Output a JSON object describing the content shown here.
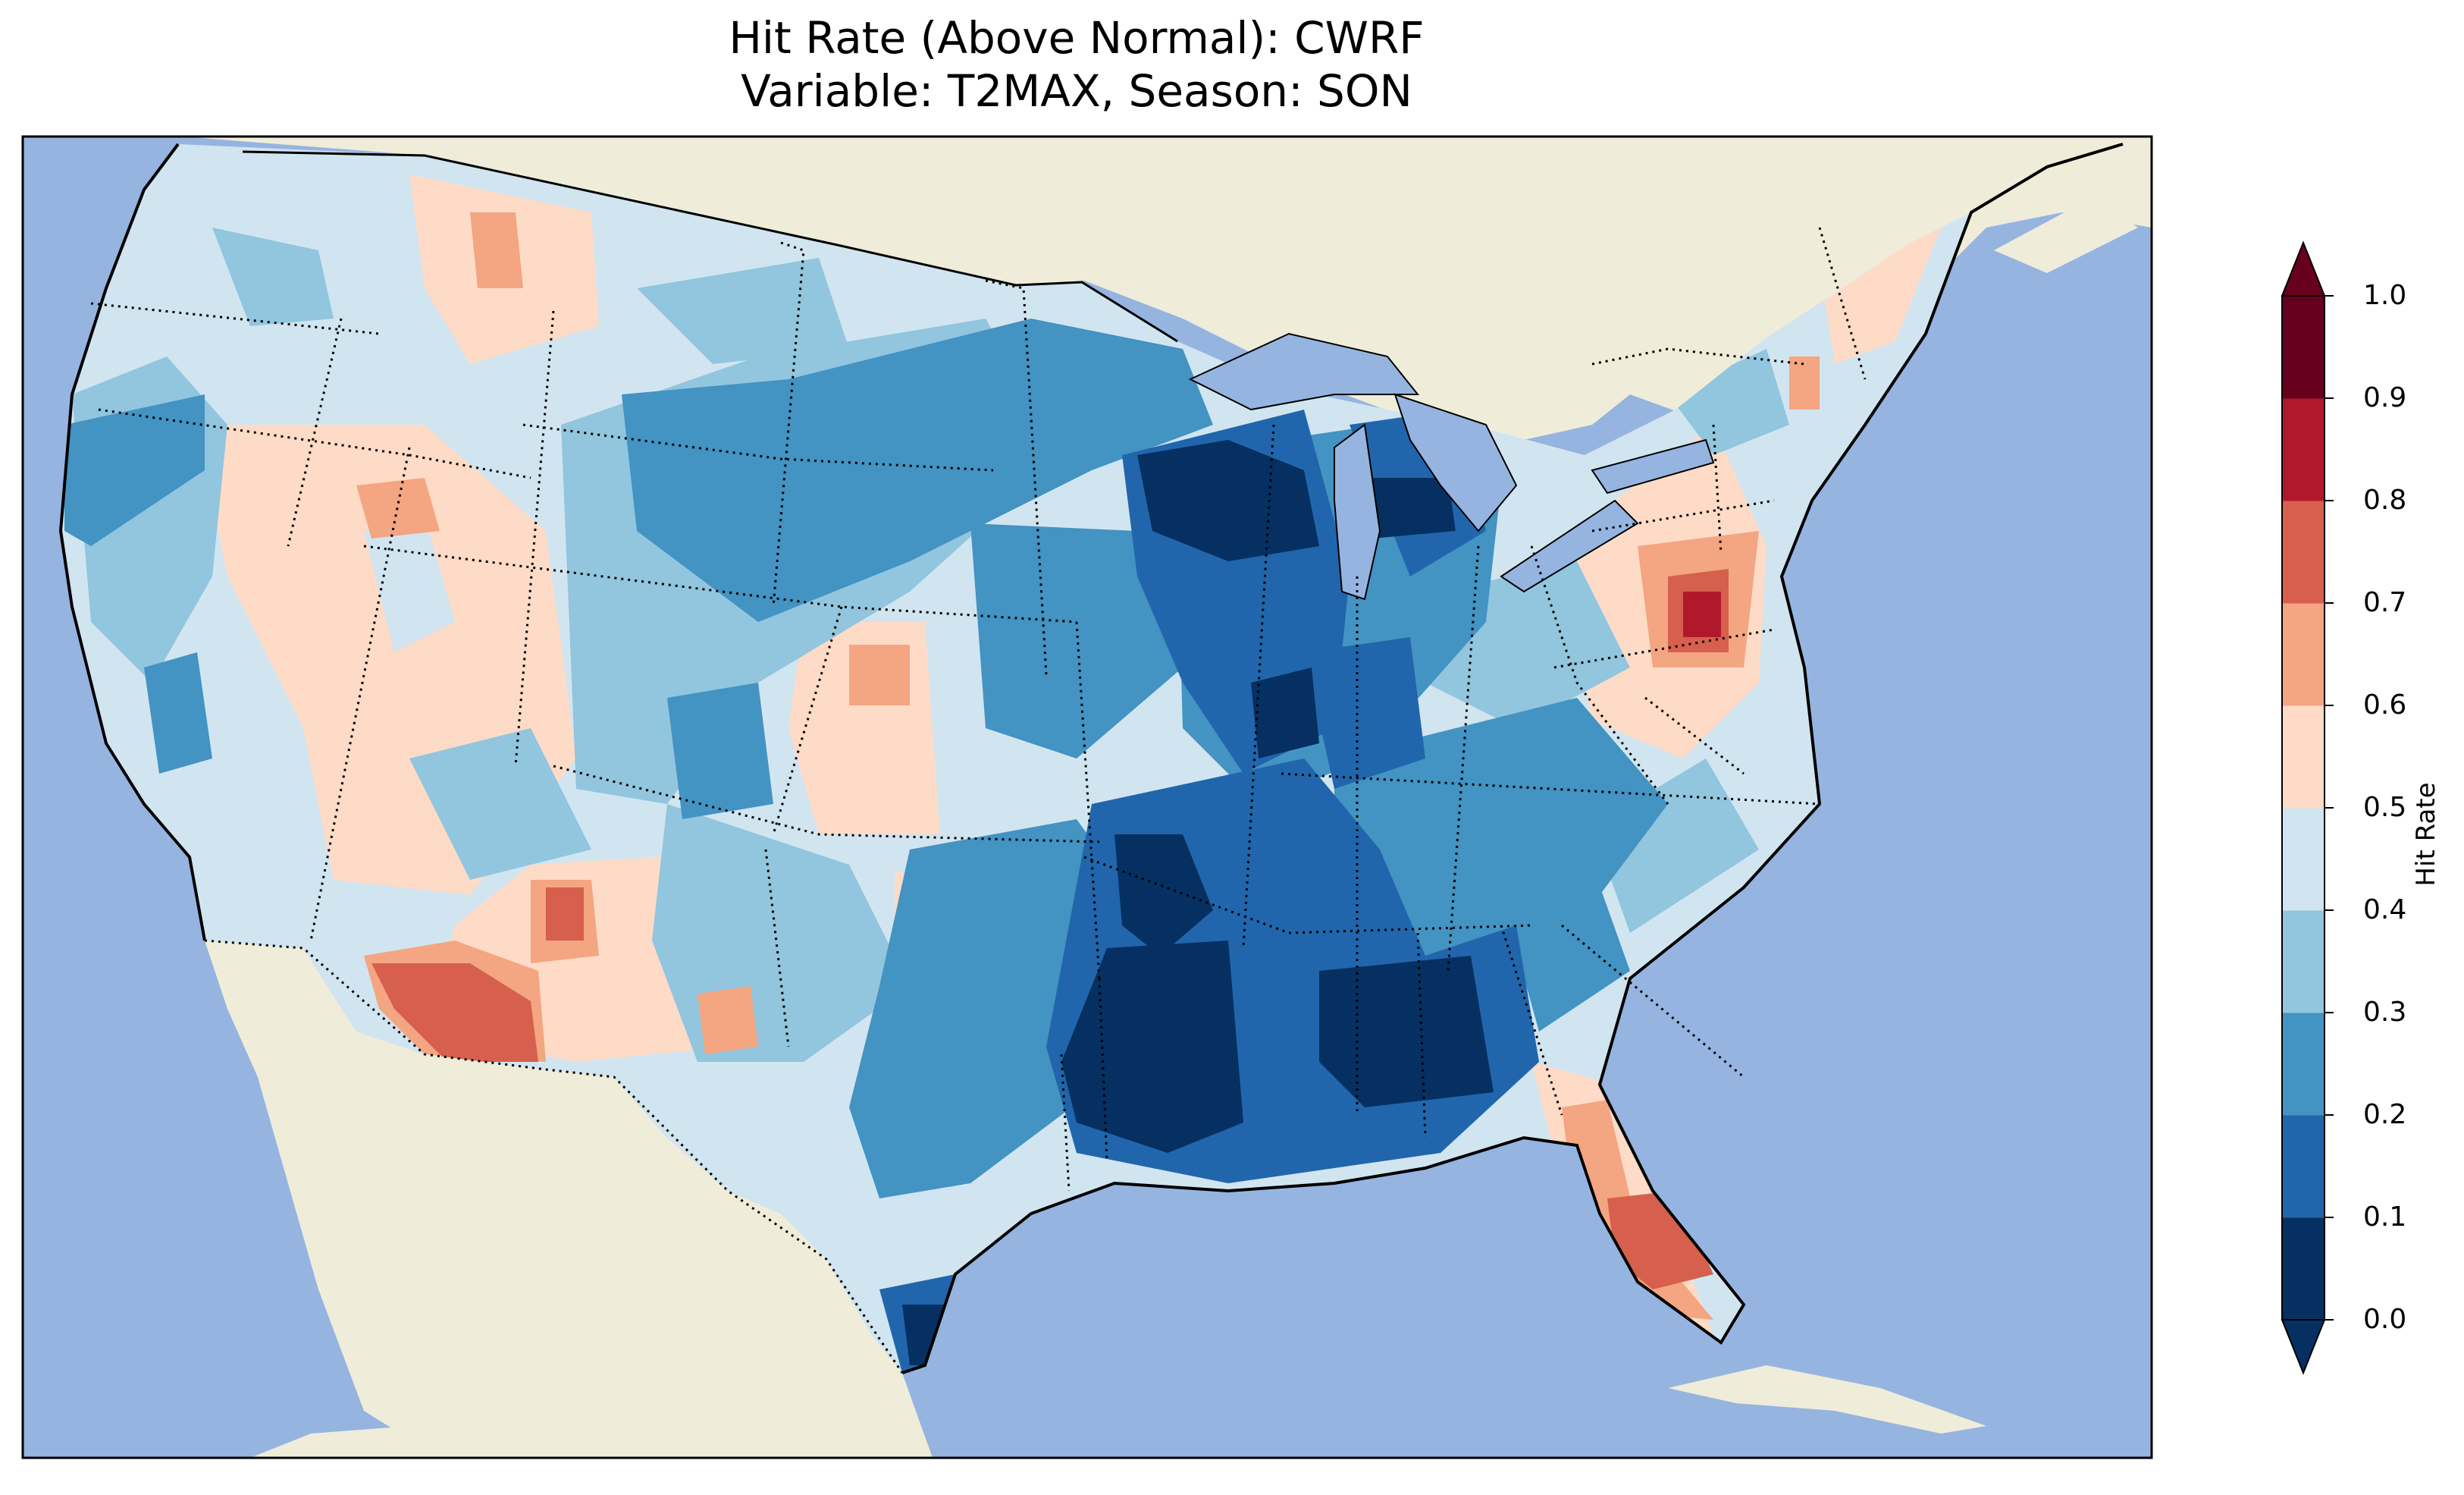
{
  "title": {
    "line1": "Hit Rate (Above Normal): CWRF",
    "line2": "Variable: T2MAX, Season: SON"
  },
  "map": {
    "projection": "Lambert conformal, contiguous United States",
    "background": {
      "ocean": "#96b4e0",
      "land": "#efedda"
    },
    "borders": "state lines dotted, coastlines solid"
  },
  "colorbar": {
    "label": "Hit Rate",
    "ticks": [
      "0.0",
      "0.1",
      "0.2",
      "0.3",
      "0.4",
      "0.5",
      "0.6",
      "0.7",
      "0.8",
      "0.9",
      "1.0"
    ],
    "levels": [
      {
        "range": "0.0-0.1",
        "color": "#053061"
      },
      {
        "range": "0.1-0.2",
        "color": "#2166ac"
      },
      {
        "range": "0.2-0.3",
        "color": "#4393c3"
      },
      {
        "range": "0.3-0.4",
        "color": "#92c5de"
      },
      {
        "range": "0.4-0.5",
        "color": "#d1e5f0"
      },
      {
        "range": "0.5-0.6",
        "color": "#fddbc7"
      },
      {
        "range": "0.6-0.7",
        "color": "#f4a582"
      },
      {
        "range": "0.7-0.8",
        "color": "#d6604d"
      },
      {
        "range": "0.8-0.9",
        "color": "#b2182b"
      },
      {
        "range": "0.9-1.0",
        "color": "#67001f"
      }
    ],
    "extend": "both"
  },
  "regions": [
    {
      "name": "Pacific Northwest",
      "value_range": "0.3-0.5",
      "level": "0.3-0.4"
    },
    {
      "name": "Great Basin / Nevada",
      "value_range": "0.4-0.6",
      "level": "0.5-0.6"
    },
    {
      "name": "Southwest Arizona",
      "value_range": "0.6-0.8",
      "level": "0.7-0.8"
    },
    {
      "name": "Northern Plains",
      "value_range": "0.2-0.4",
      "level": "0.2-0.3"
    },
    {
      "name": "Upper Midwest / Minnesota",
      "value_range": "0.0-0.2",
      "level": "0.0-0.1"
    },
    {
      "name": "Lower Mississippi Valley",
      "value_range": "0.0-0.2",
      "level": "0.0-0.1"
    },
    {
      "name": "Alabama / Georgia",
      "value_range": "0.0-0.1",
      "level": "0.0-0.1"
    },
    {
      "name": "Mid-Atlantic",
      "value_range": "0.5-0.9",
      "level": "0.8-0.9"
    },
    {
      "name": "Florida Peninsula",
      "value_range": "0.5-0.8",
      "level": "0.7-0.8"
    },
    {
      "name": "South Texas",
      "value_range": "0.0-0.3",
      "level": "0.0-0.1"
    }
  ]
}
